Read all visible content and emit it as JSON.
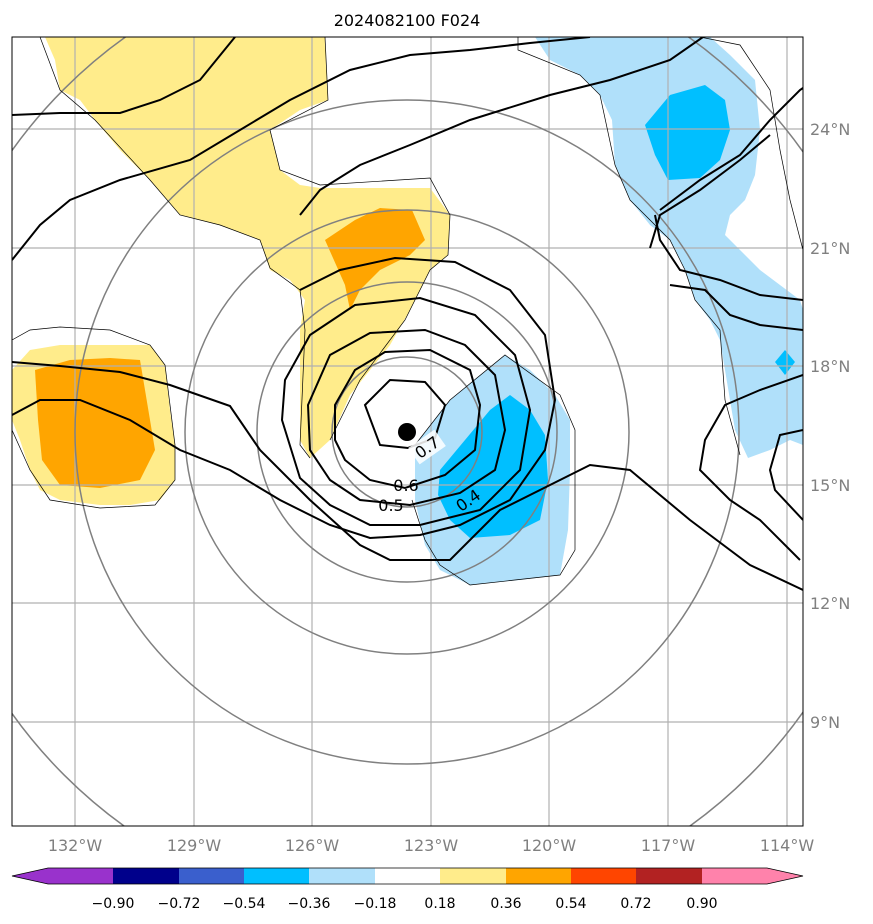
{
  "title": "2024082100 F024",
  "map": {
    "lat_labels": [
      "24°N",
      "21°N",
      "18°N",
      "15°N",
      "12°N",
      "9°N"
    ],
    "lon_labels": [
      "132°W",
      "129°W",
      "126°W",
      "123°W",
      "120°W",
      "117°W",
      "114°W"
    ],
    "contour_labels": [
      "0.7",
      "0.6",
      "0.5",
      "0.4"
    ],
    "center_marker": "storm-center"
  },
  "colorbar": {
    "ticks": [
      "−0.90",
      "−0.72",
      "−0.54",
      "−0.36",
      "−0.18",
      "0.18",
      "0.36",
      "0.54",
      "0.72",
      "0.90"
    ],
    "colors": [
      "#9932cc",
      "#00008b",
      "#3a5fcd",
      "#00bfff",
      "#b0e0fa",
      "#ffffff",
      "#ffec8b",
      "#ffa500",
      "#ff4500",
      "#b22222",
      "#ff82ab"
    ]
  },
  "colors": {
    "pos_light": "#ffec8b",
    "pos_mid": "#ffa500",
    "neg_light": "#b0e0fa",
    "neg_mid": "#00bfff",
    "grid": "#b0b0b0",
    "range_rings": "#808080"
  }
}
